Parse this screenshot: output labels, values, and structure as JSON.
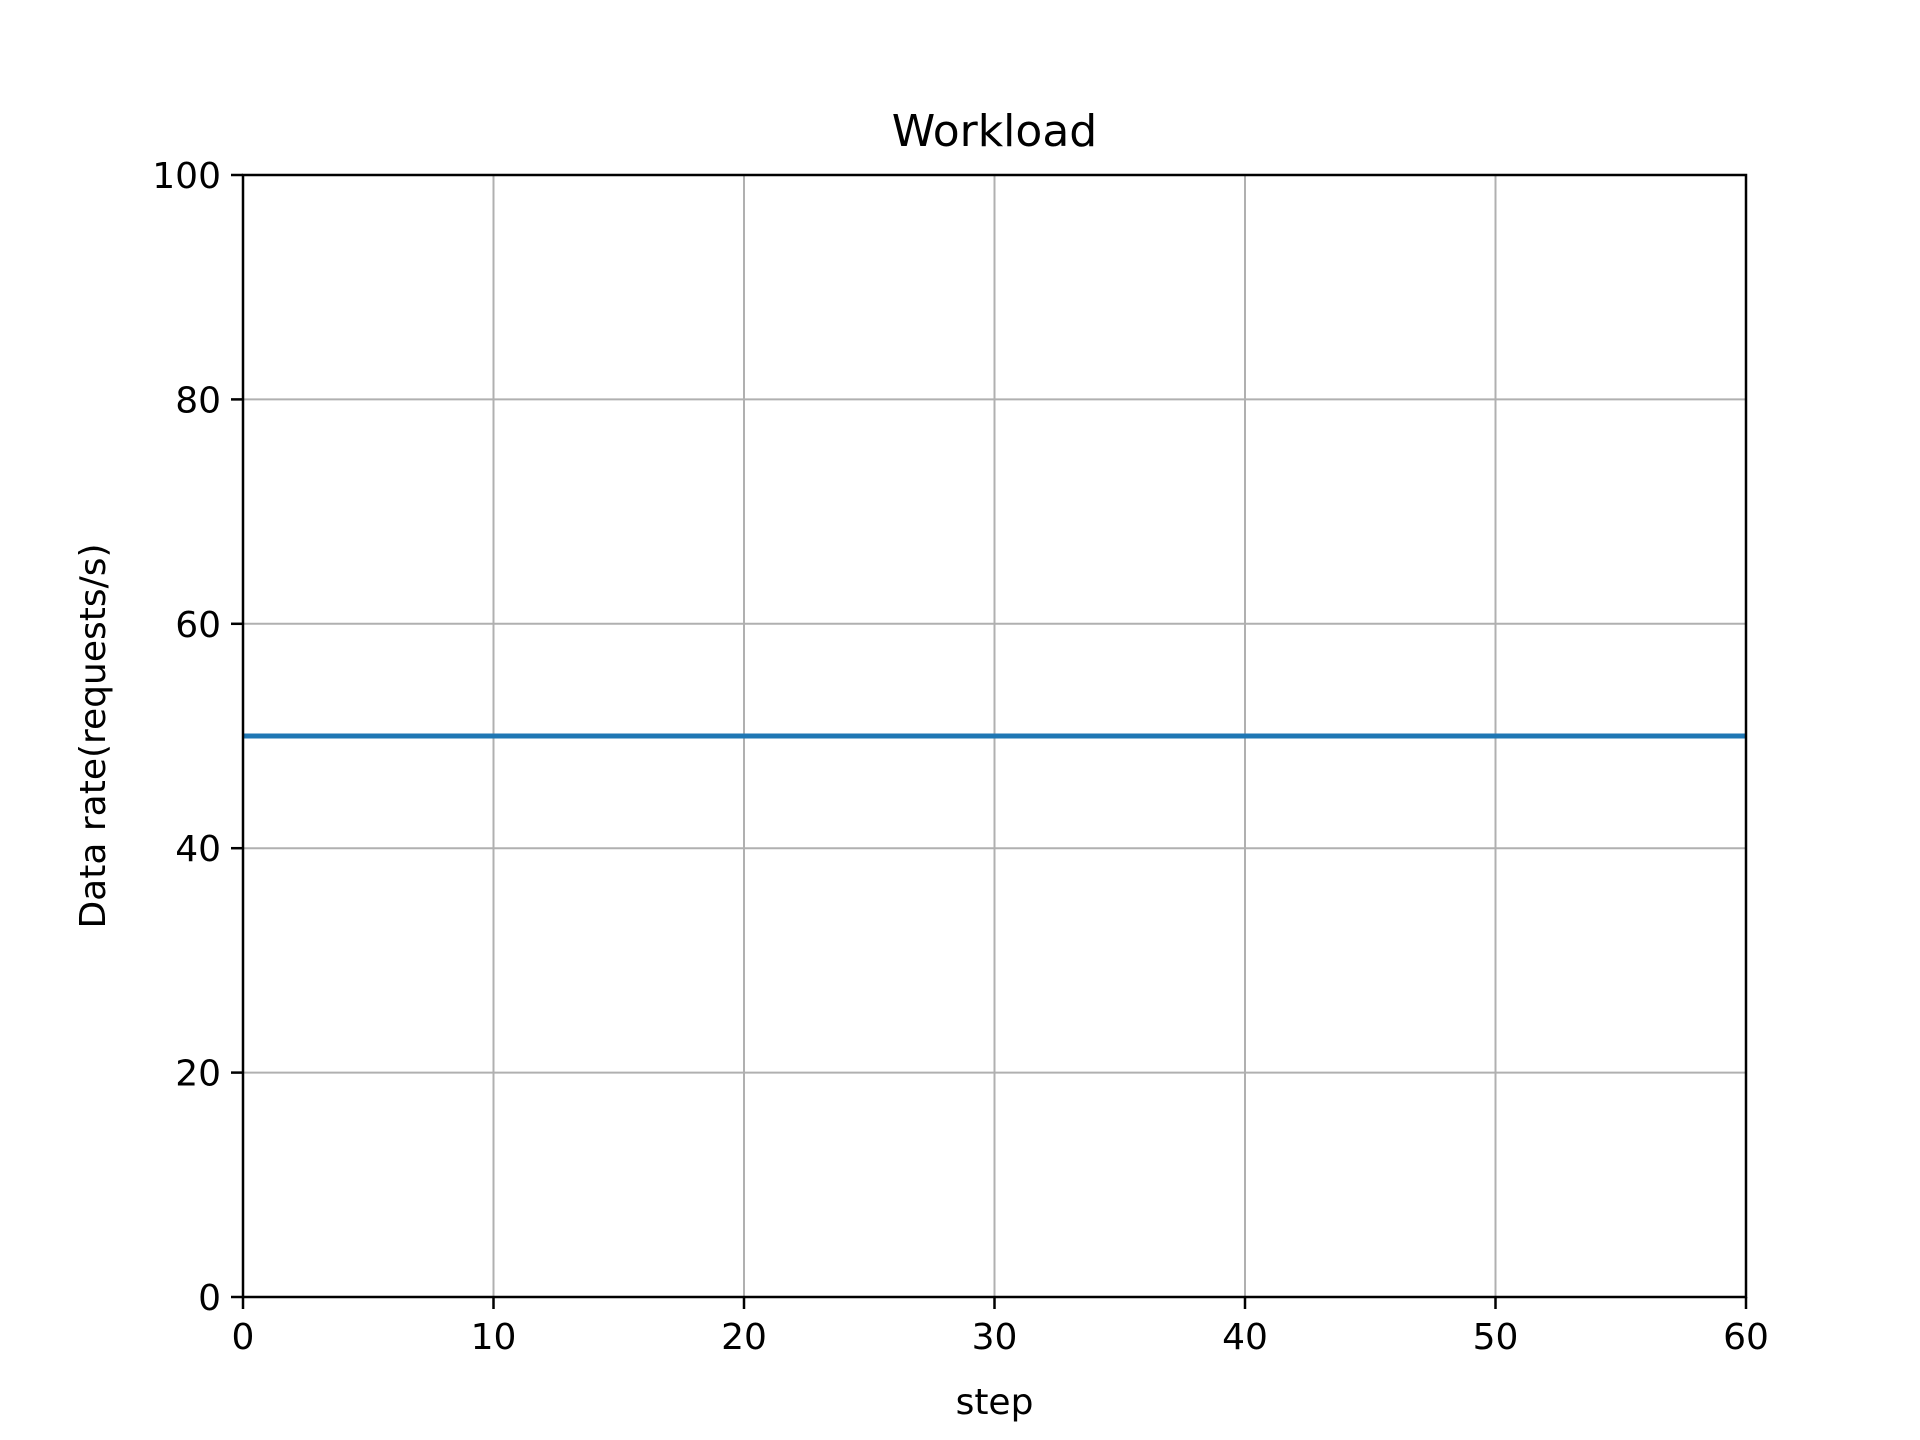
{
  "chart_data": {
    "type": "line",
    "title": "Workload",
    "xlabel": "step",
    "ylabel": "Data rate(requests/s)",
    "xlim": [
      0,
      60
    ],
    "ylim": [
      0,
      100
    ],
    "xticks": [
      0,
      10,
      20,
      30,
      40,
      50,
      60
    ],
    "yticks": [
      0,
      20,
      40,
      60,
      80,
      100
    ],
    "grid": true,
    "series": [
      {
        "color": "#1f77b4",
        "x": [
          0,
          60
        ],
        "y": [
          50,
          50
        ]
      }
    ]
  },
  "colors": {
    "grid": "#b0b0b0",
    "axes": "#000000",
    "background": "#ffffff"
  }
}
